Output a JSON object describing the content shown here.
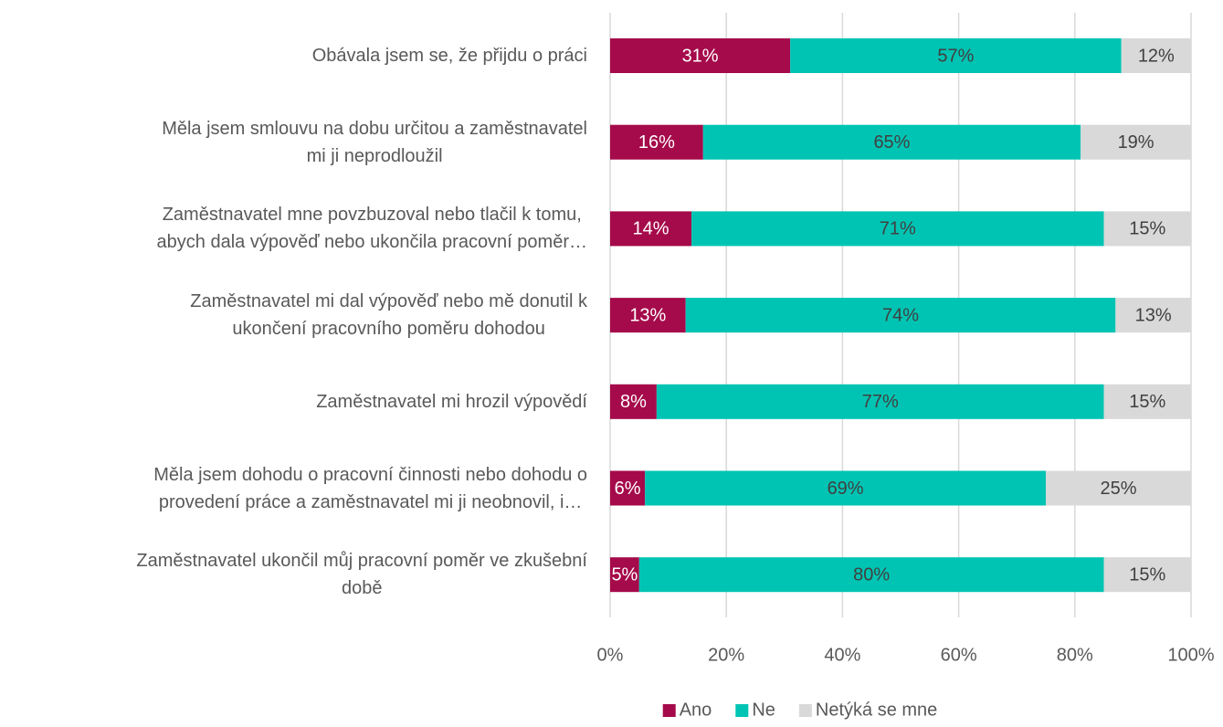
{
  "chart_data": {
    "type": "stacked-bar-horizontal",
    "categories": [
      "Obávala jsem se, že přijdu o práci",
      "Měla jsem smlouvu na dobu určitou a zaměstnavatel\nmi ji neprodloužil",
      "Zaměstnavatel mne povzbuzoval nebo tlačil k tomu,\nabych dala výpověď nebo ukončila pracovní poměr…",
      "Zaměstnavatel mi dal výpověď nebo mě donutil k\nukončení pracovního poměru dohodou",
      "Zaměstnavatel mi hrozil výpovědí",
      "Měla jsem dohodu o pracovní činnosti nebo dohodu o\nprovedení práce a zaměstnavatel mi ji neobnovil, i…",
      "Zaměstnavatel ukončil můj pracovní poměr ve zkušební\ndobě"
    ],
    "series": [
      {
        "name": "Ano",
        "color": "#a50a4a",
        "values": [
          31,
          16,
          14,
          13,
          8,
          6,
          5
        ],
        "value_labels": [
          "31%",
          "16%",
          "14%",
          "13%",
          "8%",
          "6%",
          "5%"
        ]
      },
      {
        "name": "Ne",
        "color": "#00c4b3",
        "values": [
          57,
          65,
          71,
          74,
          77,
          69,
          80
        ],
        "value_labels": [
          "57%",
          "65%",
          "71%",
          "74%",
          "77%",
          "69%",
          "80%"
        ]
      },
      {
        "name": "Netýká se mne",
        "color": "#d9d9d9",
        "values": [
          12,
          19,
          15,
          13,
          15,
          25,
          15
        ],
        "value_labels": [
          "12%",
          "19%",
          "15%",
          "13%",
          "15%",
          "25%",
          "15%"
        ]
      }
    ],
    "xlim": [
      0,
      100
    ],
    "xticks": [
      {
        "value": 0,
        "label": "0%"
      },
      {
        "value": 20,
        "label": "20%"
      },
      {
        "value": 40,
        "label": "40%"
      },
      {
        "value": 60,
        "label": "60%"
      },
      {
        "value": 80,
        "label": "80%"
      },
      {
        "value": 100,
        "label": "100%"
      }
    ],
    "grid": true,
    "legend": "bottom"
  }
}
